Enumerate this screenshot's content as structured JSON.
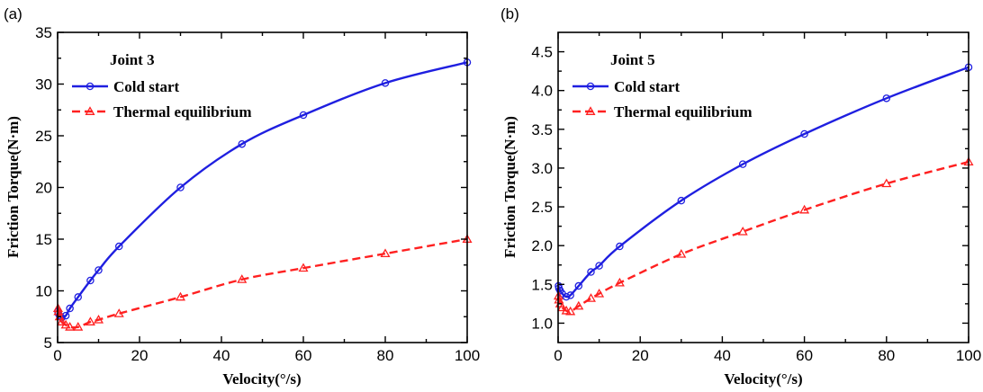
{
  "chart_data": [
    {
      "type": "line",
      "panel_label": "(a)",
      "title": "Joint 3",
      "xlabel": "Velocity(°/s)",
      "ylabel": "Friction Torque(N·m)",
      "xlim": [
        0,
        100
      ],
      "ylim": [
        5,
        35
      ],
      "xticks": [
        0,
        20,
        40,
        60,
        80,
        100
      ],
      "yticks": [
        5,
        10,
        15,
        20,
        25,
        30,
        35
      ],
      "y_decimals": 0,
      "legend_position": "top-left",
      "series": [
        {
          "name": "Cold start",
          "color": "#1f1fe0",
          "style": "solid",
          "marker": "circle",
          "x": [
            0.1,
            0.2,
            0.5,
            1,
            2,
            3,
            5,
            8,
            10,
            15,
            30,
            45,
            60,
            80,
            100
          ],
          "y": [
            8.0,
            7.8,
            7.6,
            7.4,
            7.6,
            8.3,
            9.4,
            11.0,
            12.0,
            14.3,
            20.0,
            24.2,
            27.0,
            30.1,
            32.1
          ]
        },
        {
          "name": "Thermal equilibrium",
          "color": "#ff2020",
          "style": "dashed",
          "marker": "triangle",
          "x": [
            0.1,
            0.2,
            0.5,
            1,
            2,
            3,
            5,
            8,
            10,
            15,
            30,
            45,
            60,
            80,
            100
          ],
          "y": [
            8.3,
            8.0,
            7.5,
            7.0,
            6.7,
            6.5,
            6.5,
            7.0,
            7.2,
            7.8,
            9.4,
            11.1,
            12.2,
            13.6,
            15.0
          ]
        }
      ]
    },
    {
      "type": "line",
      "panel_label": "(b)",
      "title": "Joint 5",
      "xlabel": "Velocity(°/s)",
      "ylabel": "Friction Torque(N·m)",
      "xlim": [
        0,
        100
      ],
      "ylim": [
        0.75,
        4.75
      ],
      "xticks": [
        0,
        20,
        40,
        60,
        80,
        100
      ],
      "yticks": [
        1.0,
        1.5,
        2.0,
        2.5,
        3.0,
        3.5,
        4.0,
        4.5
      ],
      "y_decimals": 1,
      "legend_position": "top-left",
      "series": [
        {
          "name": "Cold start",
          "color": "#1f1fe0",
          "style": "solid",
          "marker": "circle",
          "x": [
            0.1,
            0.2,
            0.5,
            1,
            2,
            3,
            5,
            8,
            10,
            15,
            30,
            45,
            60,
            80,
            100
          ],
          "y": [
            1.48,
            1.45,
            1.42,
            1.38,
            1.34,
            1.36,
            1.48,
            1.66,
            1.74,
            1.99,
            2.58,
            3.05,
            3.44,
            3.9,
            4.3
          ]
        },
        {
          "name": "Thermal equilibrium",
          "color": "#ff2020",
          "style": "dashed",
          "marker": "triangle",
          "x": [
            0.1,
            0.2,
            0.5,
            1,
            2,
            3,
            5,
            8,
            10,
            15,
            30,
            45,
            60,
            80,
            100
          ],
          "y": [
            1.35,
            1.3,
            1.25,
            1.2,
            1.16,
            1.15,
            1.22,
            1.32,
            1.38,
            1.52,
            1.89,
            2.18,
            2.46,
            2.8,
            3.08
          ]
        }
      ]
    }
  ]
}
